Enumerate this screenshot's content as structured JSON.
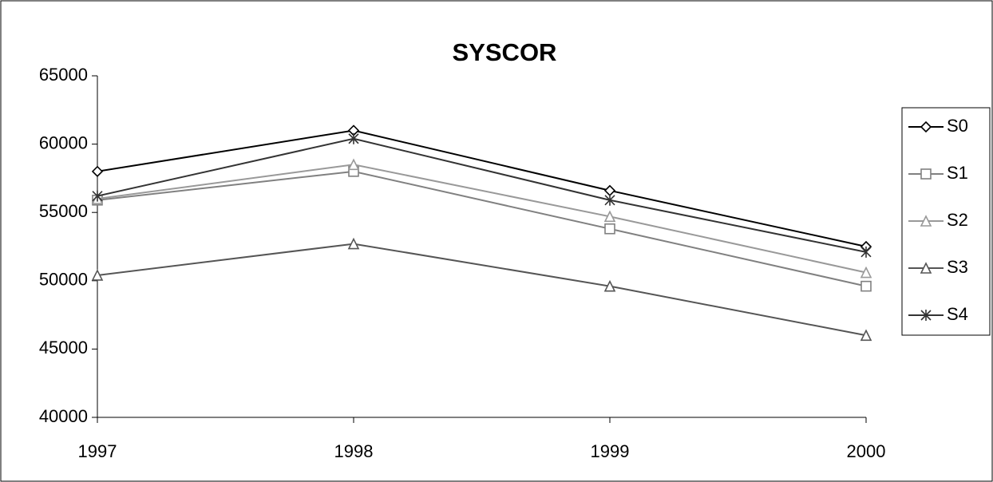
{
  "chart_data": {
    "type": "line",
    "title": "SYSCOR",
    "categories": [
      "1997",
      "1998",
      "1999",
      "2000"
    ],
    "series": [
      {
        "name": "S0",
        "color": "#000000",
        "marker": "diamond",
        "values": [
          58000,
          61000,
          56600,
          52500
        ]
      },
      {
        "name": "S1",
        "color": "#808080",
        "marker": "square",
        "values": [
          55900,
          58000,
          53800,
          49600
        ]
      },
      {
        "name": "S2",
        "color": "#999999",
        "marker": "triangle",
        "values": [
          56000,
          58500,
          54700,
          50600
        ]
      },
      {
        "name": "S3",
        "color": "#555555",
        "marker": "triangle",
        "values": [
          50400,
          52700,
          49600,
          46000
        ]
      },
      {
        "name": "S4",
        "color": "#333333",
        "marker": "asterisk",
        "values": [
          56200,
          60400,
          55900,
          52100
        ]
      }
    ],
    "ylim": [
      40000,
      65000
    ],
    "yticks": [
      40000,
      45000,
      50000,
      55000,
      60000,
      65000
    ],
    "grid": false,
    "legend": "right"
  }
}
